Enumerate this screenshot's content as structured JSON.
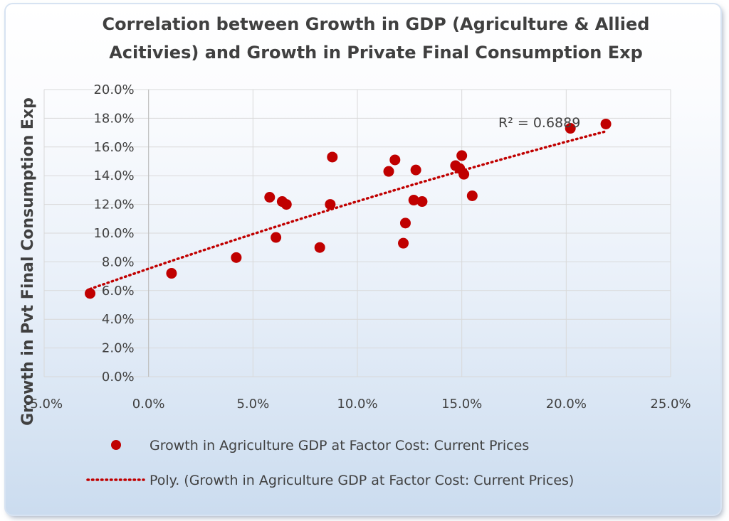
{
  "chart_data": {
    "type": "scatter",
    "title_lines": [
      "Correlation between Growth in GDP (Agriculture & Allied",
      "Acitivies) and Growth in Private Final Consumption Exp"
    ],
    "xlabel": "",
    "ylabel": "Growth in Pvt Final Consumption Exp",
    "xlim": [
      -5,
      25
    ],
    "ylim": [
      0,
      20
    ],
    "x_ticks": [
      -5,
      0,
      5,
      10,
      15,
      20,
      25
    ],
    "x_tick_labels": [
      "-5.0%",
      "0.0%",
      "5.0%",
      "10.0%",
      "15.0%",
      "20.0%",
      "25.0%"
    ],
    "y_ticks": [
      0,
      2,
      4,
      6,
      8,
      10,
      12,
      14,
      16,
      18,
      20
    ],
    "y_tick_labels": [
      "0.0%",
      "2.0%",
      "4.0%",
      "6.0%",
      "8.0%",
      "10.0%",
      "12.0%",
      "14.0%",
      "16.0%",
      "18.0%",
      "20.0%"
    ],
    "grid": true,
    "legend_position": "bottom",
    "series": [
      {
        "name": "Growth in Agriculture GDP at Factor Cost: Current Prices",
        "color": "#c00000",
        "points": [
          {
            "x": -2.8,
            "y": 5.8
          },
          {
            "x": 1.1,
            "y": 7.2
          },
          {
            "x": 4.2,
            "y": 8.3
          },
          {
            "x": 5.8,
            "y": 12.5
          },
          {
            "x": 6.1,
            "y": 9.7
          },
          {
            "x": 6.4,
            "y": 12.2
          },
          {
            "x": 6.6,
            "y": 12.0
          },
          {
            "x": 8.2,
            "y": 9.0
          },
          {
            "x": 8.7,
            "y": 12.0
          },
          {
            "x": 8.8,
            "y": 15.3
          },
          {
            "x": 11.5,
            "y": 14.3
          },
          {
            "x": 11.8,
            "y": 15.1
          },
          {
            "x": 12.2,
            "y": 9.3
          },
          {
            "x": 12.3,
            "y": 10.7
          },
          {
            "x": 12.7,
            "y": 12.3
          },
          {
            "x": 12.8,
            "y": 14.4
          },
          {
            "x": 13.1,
            "y": 12.2
          },
          {
            "x": 14.7,
            "y": 14.7
          },
          {
            "x": 14.9,
            "y": 14.5
          },
          {
            "x": 15.0,
            "y": 15.4
          },
          {
            "x": 15.1,
            "y": 14.1
          },
          {
            "x": 15.5,
            "y": 12.6
          },
          {
            "x": 20.2,
            "y": 17.3
          },
          {
            "x": 21.9,
            "y": 17.6
          }
        ]
      }
    ],
    "trendline": {
      "name": "Poly. (Growth in Agriculture GDP at Factor Cost: Current Prices)",
      "type": "polynomial",
      "color": "#c00000",
      "x_range": [
        -2.8,
        21.9
      ],
      "r_squared_label": "R² = 0.6889"
    }
  }
}
